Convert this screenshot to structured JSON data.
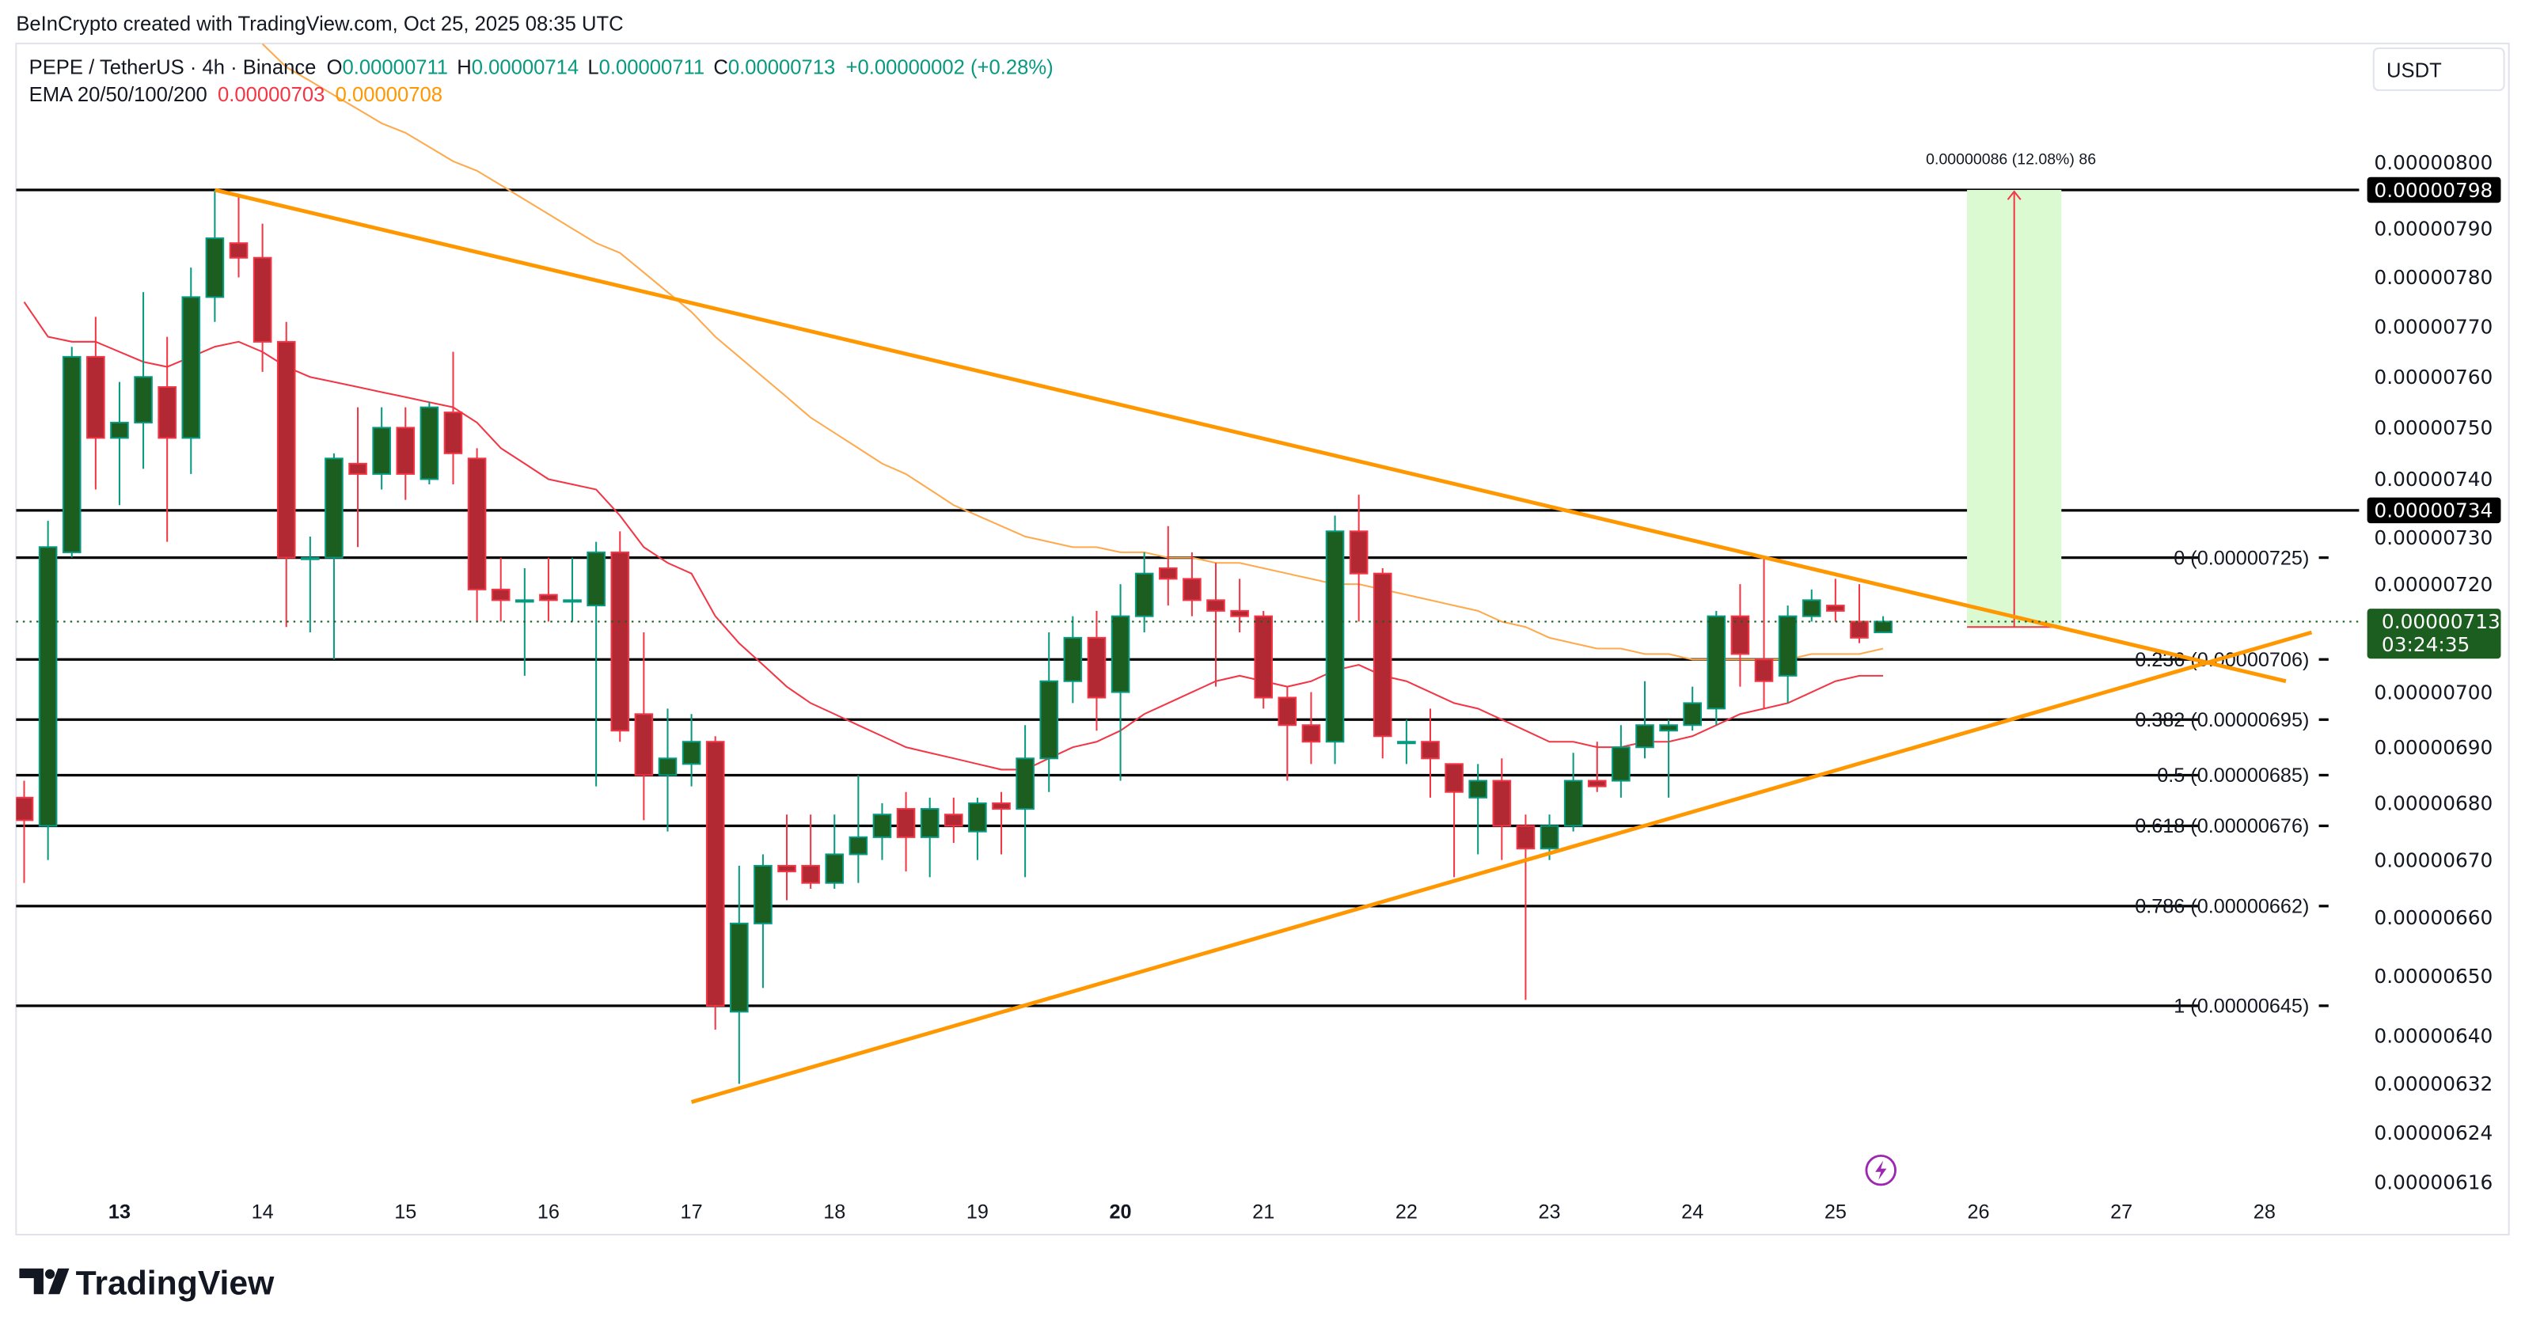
{
  "watermark": "BeInCrypto created with TradingView.com, Oct 25, 2025 08:35 UTC",
  "legend": {
    "symbol": "PEPE / TetherUS · 4h · Binance",
    "o_label": "O",
    "o_value": "0.00000711",
    "h_label": "H",
    "h_value": "0.00000714",
    "l_label": "L",
    "l_value": "0.00000711",
    "c_label": "C",
    "c_value": "0.00000713",
    "change": "+0.00000002 (+0.28%)",
    "ema_label": "EMA 20/50/100/200",
    "ema20_value": "0.00000703",
    "ema50_value": "0.00000708"
  },
  "currency_button": "USDT",
  "logo_text": "TradingView",
  "colors": {
    "up_body": "#1b5e20",
    "up_border": "#089981",
    "down_body": "#b22833",
    "down_border": "#f23645",
    "ema20": "#f23645",
    "ema50": "#ffa94d",
    "trendline": "#ff9800",
    "measure_fill": "#dcfad2",
    "last_price_bg": "#1b5e20",
    "level_label_bg": "#000000",
    "lightning": "#9c27b0"
  },
  "icons": {
    "lightning": "lightning-bolt-icon",
    "logo": "tradingview-logo-icon"
  },
  "chart_data": {
    "type": "candlestick",
    "symbol": "PEPE / TetherUS",
    "interval": "4h",
    "y_scale": "log",
    "grid": false,
    "x_ticks": [
      {
        "label": "13",
        "bold": true
      },
      {
        "label": "14"
      },
      {
        "label": "15"
      },
      {
        "label": "16"
      },
      {
        "label": "17"
      },
      {
        "label": "18"
      },
      {
        "label": "19"
      },
      {
        "label": "20",
        "bold": true
      },
      {
        "label": "21"
      },
      {
        "label": "22"
      },
      {
        "label": "23"
      },
      {
        "label": "24"
      },
      {
        "label": "25"
      },
      {
        "label": "26"
      },
      {
        "label": "27"
      },
      {
        "label": "28"
      }
    ],
    "y_ticks": [
      "0.00000800",
      "0.00000790",
      "0.00000780",
      "0.00000770",
      "0.00000760",
      "0.00000750",
      "0.00000740",
      "0.00000730",
      "0.00000720",
      "0.00000700",
      "0.00000690",
      "0.00000680",
      "0.00000670",
      "0.00000660",
      "0.00000650",
      "0.00000640",
      "0.00000632",
      "0.00000624",
      "0.00000616"
    ],
    "candles_ohlc": [
      [
        6.81e-06,
        6.84e-06,
        6.66e-06,
        6.77e-06
      ],
      [
        6.76e-06,
        7.32e-06,
        6.7e-06,
        7.27e-06
      ],
      [
        7.26e-06,
        7.66e-06,
        7.25e-06,
        7.64e-06
      ],
      [
        7.64e-06,
        7.72e-06,
        7.38e-06,
        7.48e-06
      ],
      [
        7.48e-06,
        7.59e-06,
        7.35e-06,
        7.51e-06
      ],
      [
        7.51e-06,
        7.77e-06,
        7.42e-06,
        7.6e-06
      ],
      [
        7.58e-06,
        7.68e-06,
        7.28e-06,
        7.48e-06
      ],
      [
        7.48e-06,
        7.82e-06,
        7.41e-06,
        7.76e-06
      ],
      [
        7.76e-06,
        7.98e-06,
        7.71e-06,
        7.88e-06
      ],
      [
        7.87e-06,
        7.97e-06,
        7.8e-06,
        7.84e-06
      ],
      [
        7.84e-06,
        7.91e-06,
        7.61e-06,
        7.67e-06
      ],
      [
        7.67e-06,
        7.71e-06,
        7.12e-06,
        7.25e-06
      ],
      [
        7.25e-06,
        7.29e-06,
        7.11e-06,
        7.25e-06
      ],
      [
        7.25e-06,
        7.45e-06,
        7.06e-06,
        7.44e-06
      ],
      [
        7.43e-06,
        7.54e-06,
        7.27e-06,
        7.41e-06
      ],
      [
        7.41e-06,
        7.54e-06,
        7.38e-06,
        7.5e-06
      ],
      [
        7.5e-06,
        7.54e-06,
        7.36e-06,
        7.41e-06
      ],
      [
        7.4e-06,
        7.55e-06,
        7.39e-06,
        7.54e-06
      ],
      [
        7.53e-06,
        7.65e-06,
        7.39e-06,
        7.45e-06
      ],
      [
        7.44e-06,
        7.46e-06,
        7.13e-06,
        7.19e-06
      ],
      [
        7.19e-06,
        7.25e-06,
        7.13e-06,
        7.17e-06
      ],
      [
        7.17e-06,
        7.23e-06,
        7.03e-06,
        7.17e-06
      ],
      [
        7.18e-06,
        7.25e-06,
        7.13e-06,
        7.17e-06
      ],
      [
        7.17e-06,
        7.25e-06,
        7.13e-06,
        7.17e-06
      ],
      [
        7.16e-06,
        7.28e-06,
        6.83e-06,
        7.26e-06
      ],
      [
        7.26e-06,
        7.3e-06,
        6.91e-06,
        6.93e-06
      ],
      [
        6.96e-06,
        7.11e-06,
        6.77e-06,
        6.85e-06
      ],
      [
        6.85e-06,
        6.97e-06,
        6.75e-06,
        6.88e-06
      ],
      [
        6.87e-06,
        6.96e-06,
        6.83e-06,
        6.91e-06
      ],
      [
        6.91e-06,
        6.92e-06,
        6.41e-06,
        6.45e-06
      ],
      [
        6.44e-06,
        6.69e-06,
        6.32e-06,
        6.59e-06
      ],
      [
        6.59e-06,
        6.71e-06,
        6.48e-06,
        6.69e-06
      ],
      [
        6.69e-06,
        6.78e-06,
        6.63e-06,
        6.68e-06
      ],
      [
        6.69e-06,
        6.78e-06,
        6.65e-06,
        6.66e-06
      ],
      [
        6.66e-06,
        6.78e-06,
        6.65e-06,
        6.71e-06
      ],
      [
        6.71e-06,
        6.85e-06,
        6.66e-06,
        6.74e-06
      ],
      [
        6.74e-06,
        6.8e-06,
        6.7e-06,
        6.78e-06
      ],
      [
        6.79e-06,
        6.82e-06,
        6.68e-06,
        6.74e-06
      ],
      [
        6.74e-06,
        6.81e-06,
        6.67e-06,
        6.79e-06
      ],
      [
        6.78e-06,
        6.81e-06,
        6.73e-06,
        6.76e-06
      ],
      [
        6.75e-06,
        6.81e-06,
        6.7e-06,
        6.8e-06
      ],
      [
        6.8e-06,
        6.82e-06,
        6.71e-06,
        6.79e-06
      ],
      [
        6.79e-06,
        6.94e-06,
        6.67e-06,
        6.88e-06
      ],
      [
        6.88e-06,
        7.11e-06,
        6.82e-06,
        7.02e-06
      ],
      [
        7.02e-06,
        7.14e-06,
        6.98e-06,
        7.1e-06
      ],
      [
        7.1e-06,
        7.15e-06,
        6.93e-06,
        6.99e-06
      ],
      [
        7e-06,
        7.2e-06,
        6.84e-06,
        7.14e-06
      ],
      [
        7.14e-06,
        7.26e-06,
        7.11e-06,
        7.22e-06
      ],
      [
        7.23e-06,
        7.31e-06,
        7.16e-06,
        7.21e-06
      ],
      [
        7.21e-06,
        7.26e-06,
        7.14e-06,
        7.17e-06
      ],
      [
        7.17e-06,
        7.24e-06,
        7.01e-06,
        7.15e-06
      ],
      [
        7.15e-06,
        7.21e-06,
        7.11e-06,
        7.14e-06
      ],
      [
        7.14e-06,
        7.15e-06,
        6.97e-06,
        6.99e-06
      ],
      [
        6.99e-06,
        7.01e-06,
        6.84e-06,
        6.94e-06
      ],
      [
        6.94e-06,
        7e-06,
        6.87e-06,
        6.91e-06
      ],
      [
        6.91e-06,
        7.33e-06,
        6.87e-06,
        7.3e-06
      ],
      [
        7.3e-06,
        7.37e-06,
        7.13e-06,
        7.22e-06
      ],
      [
        7.22e-06,
        7.23e-06,
        6.88e-06,
        6.92e-06
      ],
      [
        6.91e-06,
        6.95e-06,
        6.87e-06,
        6.91e-06
      ],
      [
        6.91e-06,
        6.97e-06,
        6.81e-06,
        6.88e-06
      ],
      [
        6.87e-06,
        6.87e-06,
        6.67e-06,
        6.82e-06
      ],
      [
        6.81e-06,
        6.87e-06,
        6.71e-06,
        6.84e-06
      ],
      [
        6.84e-06,
        6.88e-06,
        6.7e-06,
        6.76e-06
      ],
      [
        6.76e-06,
        6.78e-06,
        6.46e-06,
        6.72e-06
      ],
      [
        6.72e-06,
        6.78e-06,
        6.7e-06,
        6.76e-06
      ],
      [
        6.76e-06,
        6.89e-06,
        6.75e-06,
        6.84e-06
      ],
      [
        6.84e-06,
        6.91e-06,
        6.82e-06,
        6.83e-06
      ],
      [
        6.84e-06,
        6.94e-06,
        6.81e-06,
        6.9e-06
      ],
      [
        6.9e-06,
        7.02e-06,
        6.88e-06,
        6.94e-06
      ],
      [
        6.93e-06,
        6.95e-06,
        6.81e-06,
        6.94e-06
      ],
      [
        6.94e-06,
        7.01e-06,
        6.93e-06,
        6.98e-06
      ],
      [
        6.97e-06,
        7.15e-06,
        6.94e-06,
        7.14e-06
      ],
      [
        7.14e-06,
        7.2e-06,
        7.01e-06,
        7.07e-06
      ],
      [
        7.06e-06,
        7.25e-06,
        6.97e-06,
        7.02e-06
      ],
      [
        7.03e-06,
        7.16e-06,
        6.98e-06,
        7.14e-06
      ],
      [
        7.14e-06,
        7.19e-06,
        7.13e-06,
        7.17e-06
      ],
      [
        7.16e-06,
        7.21e-06,
        7.13e-06,
        7.15e-06
      ],
      [
        7.13e-06,
        7.2e-06,
        7.09e-06,
        7.1e-06
      ],
      [
        7.11e-06,
        7.14e-06,
        7.11e-06,
        7.13e-06
      ]
    ],
    "ema20": [
      7.75e-06,
      7.68e-06,
      7.67e-06,
      7.67e-06,
      7.65e-06,
      7.63e-06,
      7.62e-06,
      7.64e-06,
      7.66e-06,
      7.67e-06,
      7.65e-06,
      7.62e-06,
      7.6e-06,
      7.59e-06,
      7.58e-06,
      7.57e-06,
      7.56e-06,
      7.55e-06,
      7.54e-06,
      7.51e-06,
      7.46e-06,
      7.43e-06,
      7.4e-06,
      7.39e-06,
      7.38e-06,
      7.33e-06,
      7.27e-06,
      7.24e-06,
      7.22e-06,
      7.14e-06,
      7.09e-06,
      7.05e-06,
      7.01e-06,
      6.98e-06,
      6.96e-06,
      6.94e-06,
      6.92e-06,
      6.9e-06,
      6.89e-06,
      6.88e-06,
      6.87e-06,
      6.86e-06,
      6.86e-06,
      6.88e-06,
      6.9e-06,
      6.91e-06,
      6.93e-06,
      6.96e-06,
      6.98e-06,
      7e-06,
      7.02e-06,
      7.03e-06,
      7.02e-06,
      7.01e-06,
      7.02e-06,
      7.04e-06,
      7.05e-06,
      7.03e-06,
      7.02e-06,
      7e-06,
      6.98e-06,
      6.97e-06,
      6.95e-06,
      6.93e-06,
      6.91e-06,
      6.91e-06,
      6.9e-06,
      6.9e-06,
      6.91e-06,
      6.91e-06,
      6.92e-06,
      6.94e-06,
      6.96e-06,
      6.97e-06,
      6.98e-06,
      7e-06,
      7.02e-06,
      7.03e-06,
      7.03e-06
    ],
    "ema50": [
      null,
      null,
      null,
      null,
      null,
      null,
      null,
      null,
      null,
      null,
      8.29e-06,
      8.24e-06,
      8.21e-06,
      8.18e-06,
      8.15e-06,
      8.12e-06,
      8.1e-06,
      8.07e-06,
      8.04e-06,
      8.02e-06,
      7.99e-06,
      7.96e-06,
      7.93e-06,
      7.9e-06,
      7.87e-06,
      7.85e-06,
      7.81e-06,
      7.77e-06,
      7.73e-06,
      7.68e-06,
      7.64e-06,
      7.6e-06,
      7.56e-06,
      7.52e-06,
      7.49e-06,
      7.46e-06,
      7.43e-06,
      7.41e-06,
      7.38e-06,
      7.35e-06,
      7.33e-06,
      7.31e-06,
      7.29e-06,
      7.28e-06,
      7.27e-06,
      7.27e-06,
      7.26e-06,
      7.26e-06,
      7.25e-06,
      7.25e-06,
      7.24e-06,
      7.24e-06,
      7.23e-06,
      7.22e-06,
      7.21e-06,
      7.2e-06,
      7.2e-06,
      7.19e-06,
      7.18e-06,
      7.17e-06,
      7.16e-06,
      7.15e-06,
      7.13e-06,
      7.12e-06,
      7.1e-06,
      7.09e-06,
      7.08e-06,
      7.08e-06,
      7.07e-06,
      7.07e-06,
      7.06e-06,
      7.06e-06,
      7.06e-06,
      7.06e-06,
      7.06e-06,
      7.07e-06,
      7.07e-06,
      7.07e-06,
      7.08e-06
    ],
    "horizontal_levels": [
      {
        "price": 7.98e-06,
        "axis_label": "0.00000798"
      },
      {
        "price": 7.34e-06,
        "axis_label": "0.00000734"
      }
    ],
    "fib_levels": [
      {
        "price": 7.25e-06,
        "label": "0 (0.00000725)"
      },
      {
        "price": 7.06e-06,
        "label": "0.236 (0.00000706)"
      },
      {
        "price": 6.95e-06,
        "label": "0.382 (0.00000695)"
      },
      {
        "price": 6.85e-06,
        "label": "0.5 (0.00000685)"
      },
      {
        "price": 6.76e-06,
        "label": "0.618 (0.00000676)"
      },
      {
        "price": 6.62e-06,
        "label": "0.786 (0.00000662)"
      },
      {
        "price": 6.45e-06,
        "label": "1 (0.00000645)"
      }
    ],
    "trendlines": [
      {
        "from": {
          "day": 13.667,
          "price": 7.98e-06
        },
        "to": {
          "day": 28.15,
          "price": 7.02e-06
        }
      },
      {
        "from": {
          "day": 17.0,
          "price": 6.29e-06
        },
        "to": {
          "day": 28.33,
          "price": 7.11e-06
        }
      }
    ],
    "measure": {
      "from": {
        "day": 25.92,
        "price": 7.12e-06
      },
      "to": {
        "day": 26.58,
        "price": 7.98e-06
      },
      "label": "0.00000086 (12.08%) 86"
    },
    "last_price": {
      "value": "0.00000713",
      "price": 7.13e-06,
      "countdown": "03:24:35"
    }
  }
}
